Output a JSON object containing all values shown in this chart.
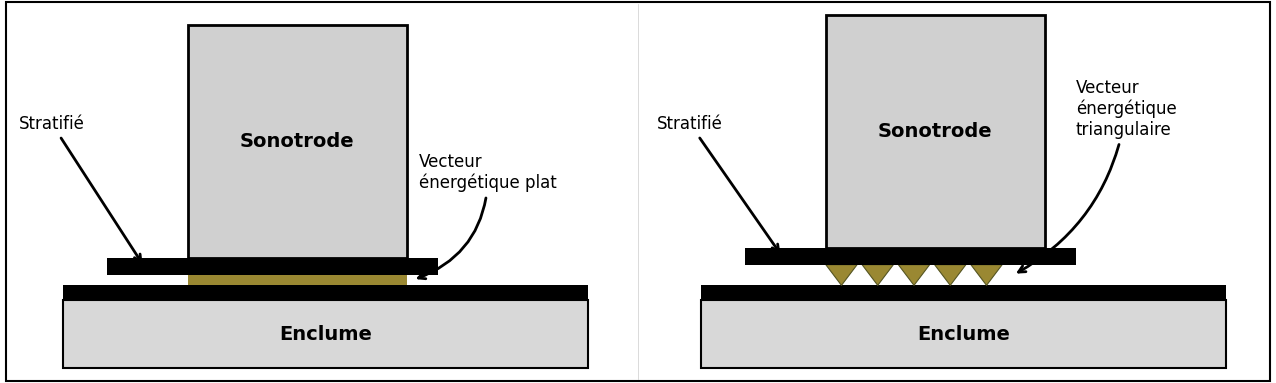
{
  "bg_color": "#ffffff",
  "border_color": "#000000",
  "sonotrode_fill": "#d0d0d0",
  "sonotrode_stroke": "#000000",
  "black_fill": "#000000",
  "enclume_fill": "#d8d8d8",
  "enclume_stroke": "#000000",
  "gold_fill": "#9a8832",
  "text_color": "#000000",
  "left_sonotrode_label": "Sonotrode",
  "right_sonotrode_label": "Sonotrode",
  "left_enclume_label": "Enclume",
  "right_enclume_label": "Enclume",
  "left_stratifie_label": "Stratifié",
  "right_stratifie_label": "Stratifié",
  "left_vecteur_label": "Vecteur\nénergétique plat",
  "right_vecteur_label": "Vecteur\nénergétique\ntriangulaire"
}
